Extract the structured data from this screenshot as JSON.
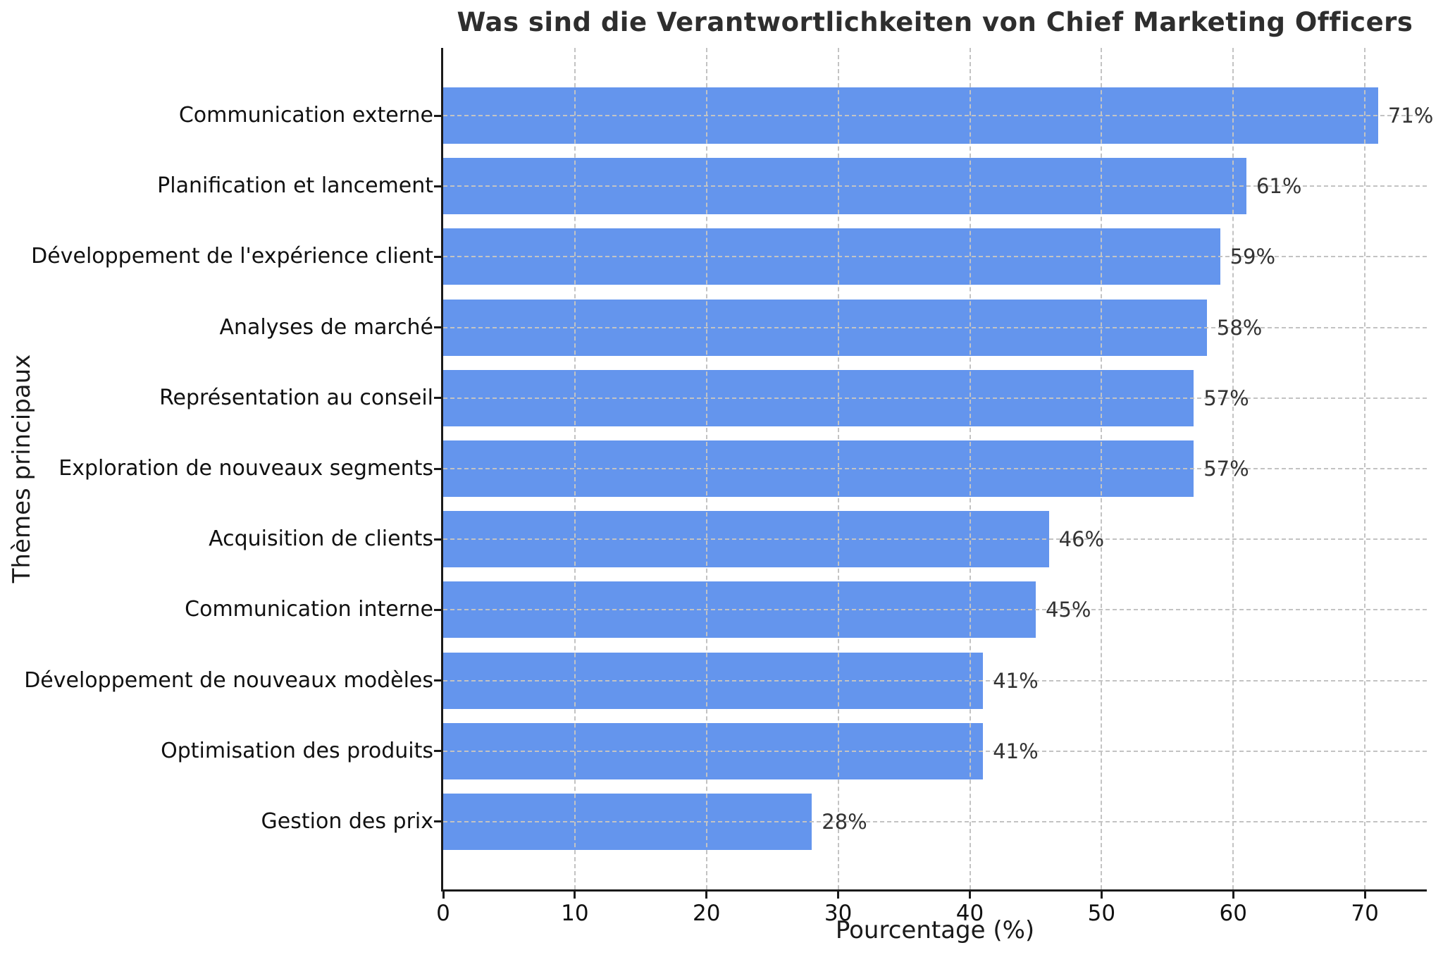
{
  "title": "Was sind die Verantwortlichkeiten von Chief Marketing Officers",
  "chart_data": {
    "type": "bar",
    "orientation": "horizontal",
    "title": "Was sind die Verantwortlichkeiten von Chief Marketing Officers",
    "xlabel": "Pourcentage (%)",
    "ylabel": "Thèmes principaux",
    "categories": [
      "Communication externe",
      "Planification et lancement",
      "Développement de l'expérience client",
      "Analyses de marché",
      "Représentation au conseil",
      "Exploration de nouveaux segments",
      "Acquisition de clients",
      "Communication interne",
      "Développement de nouveaux modèles",
      "Optimisation des produits",
      "Gestion des prix"
    ],
    "values": [
      71,
      61,
      59,
      58,
      57,
      57,
      46,
      45,
      41,
      41,
      28
    ],
    "value_labels": [
      "71%",
      "61%",
      "59%",
      "58%",
      "57%",
      "57%",
      "46%",
      "45%",
      "41%",
      "41%",
      "28%"
    ],
    "x_ticks": [
      0,
      10,
      20,
      30,
      40,
      50,
      60,
      70
    ],
    "xlim": [
      0,
      74.7
    ],
    "grid": true,
    "grid_style": "dashed",
    "bar_color": "#6495ED",
    "grid_color": "#c3c3c3",
    "text_color": "#111111",
    "legend": "none"
  }
}
